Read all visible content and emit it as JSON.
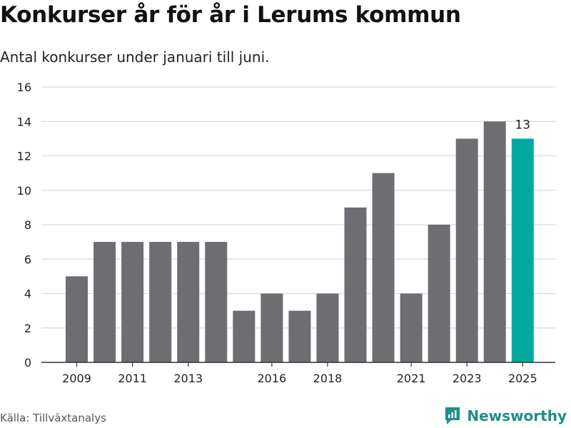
{
  "header": {
    "title": "Konkurser år för år i Lerums kommun",
    "subtitle": "Antal konkurser under januari till juni."
  },
  "footer": {
    "source": "Källa: Tillväxtanalys",
    "brand": "Newsworthy"
  },
  "colors": {
    "bar": "#6d6d72",
    "highlight": "#00a99d",
    "grid": "#d9d9d9",
    "brand": "#1f8f86"
  },
  "chart_data": {
    "type": "bar",
    "title": "Konkurser år för år i Lerums kommun",
    "subtitle": "Antal konkurser under januari till juni.",
    "xlabel": "",
    "ylabel": "",
    "categories": [
      "2009",
      "2010",
      "2011",
      "2012",
      "2013",
      "2014",
      "2015",
      "2016",
      "2017",
      "2018",
      "2019",
      "2020",
      "2021",
      "2022",
      "2023",
      "2024",
      "2025"
    ],
    "values": [
      5,
      7,
      7,
      7,
      7,
      7,
      3,
      4,
      3,
      4,
      9,
      11,
      4,
      8,
      13,
      14,
      13
    ],
    "x_tick_labels": [
      "2009",
      "2011",
      "2013",
      "2016",
      "2018",
      "2021",
      "2023",
      "2025"
    ],
    "y_ticks": [
      0,
      2,
      4,
      6,
      8,
      10,
      12,
      14,
      16
    ],
    "ylim": [
      0,
      16
    ],
    "highlight_category": "2025",
    "data_labels": [
      {
        "category": "2025",
        "value": 13
      }
    ],
    "grid": true,
    "legend": "none"
  }
}
